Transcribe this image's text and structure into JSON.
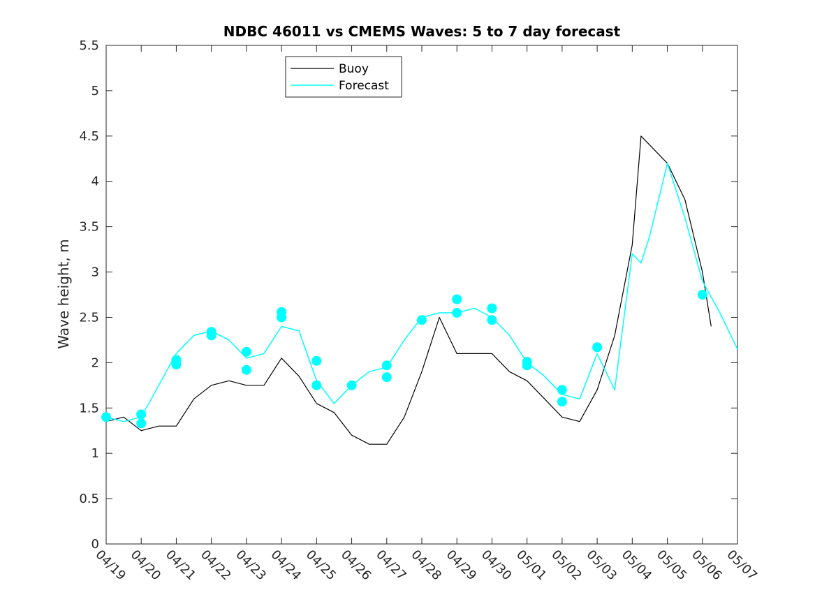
{
  "chart_data": {
    "type": "line",
    "title": "NDBC 46011 vs CMEMS Waves: 5 to 7 day forecast",
    "ylabel": "Wave height, m",
    "xlabel": "",
    "ylim": [
      0,
      5.5
    ],
    "yticks": [
      0,
      0.5,
      1,
      1.5,
      2,
      2.5,
      3,
      3.5,
      4,
      4.5,
      5,
      5.5
    ],
    "ytick_labels": [
      "0",
      "0.5",
      "1",
      "1.5",
      "2",
      "2.5",
      "3",
      "3.5",
      "4",
      "4.5",
      "5",
      "5.5"
    ],
    "xlim": [
      "04/19",
      "05/07"
    ],
    "xtick_labels": [
      "04/19",
      "04/20",
      "04/21",
      "04/22",
      "04/23",
      "04/24",
      "04/25",
      "04/26",
      "04/27",
      "04/28",
      "04/29",
      "04/30",
      "05/01",
      "05/02",
      "05/03",
      "05/04",
      "05/05",
      "05/06",
      "05/07"
    ],
    "grid": false,
    "legend": {
      "placement": "top-left",
      "entries": [
        {
          "label": "Buoy",
          "color": "#000000"
        },
        {
          "label": "Forecast",
          "color": "#00ffff"
        }
      ]
    },
    "colors": {
      "buoy": "#000000",
      "forecast": "#00ffff",
      "marker": "#00ffff"
    },
    "series": [
      {
        "name": "Buoy",
        "x": [
          "04/19 00:00",
          "04/19 12:00",
          "04/20 00:00",
          "04/20 12:00",
          "04/21 00:00",
          "04/21 12:00",
          "04/22 00:00",
          "04/22 12:00",
          "04/23 00:00",
          "04/23 12:00",
          "04/24 00:00",
          "04/24 12:00",
          "04/25 00:00",
          "04/25 12:00",
          "04/26 00:00",
          "04/26 12:00",
          "04/27 00:00",
          "04/27 12:00",
          "04/28 00:00",
          "04/28 12:00",
          "04/29 00:00",
          "04/29 12:00",
          "04/30 00:00",
          "04/30 12:00",
          "05/01 00:00",
          "05/01 12:00",
          "05/02 00:00",
          "05/02 12:00",
          "05/03 00:00",
          "05/03 12:00",
          "05/04 00:00",
          "05/04 06:00",
          "05/04 12:00",
          "05/05 00:00",
          "05/05 12:00",
          "05/06 00:00",
          "05/06 06:00"
        ],
        "y": [
          1.35,
          1.4,
          1.25,
          1.3,
          1.3,
          1.6,
          1.75,
          1.8,
          1.75,
          1.75,
          2.05,
          1.85,
          1.55,
          1.45,
          1.2,
          1.1,
          1.1,
          1.4,
          1.9,
          2.5,
          2.1,
          2.1,
          2.1,
          1.9,
          1.8,
          1.6,
          1.4,
          1.35,
          1.7,
          2.3,
          3.3,
          4.5,
          4.4,
          4.2,
          3.8,
          3.0,
          2.4
        ]
      },
      {
        "name": "Forecast",
        "x": [
          "04/19 00:00",
          "04/19 12:00",
          "04/20 00:00",
          "04/20 12:00",
          "04/21 00:00",
          "04/21 12:00",
          "04/22 00:00",
          "04/22 12:00",
          "04/23 00:00",
          "04/23 12:00",
          "04/24 00:00",
          "04/24 12:00",
          "04/25 00:00",
          "04/25 12:00",
          "04/26 00:00",
          "04/26 12:00",
          "04/27 00:00",
          "04/27 12:00",
          "04/28 00:00",
          "04/28 12:00",
          "04/29 00:00",
          "04/29 12:00",
          "04/30 00:00",
          "04/30 12:00",
          "05/01 00:00",
          "05/01 12:00",
          "05/02 00:00",
          "05/02 12:00",
          "05/03 00:00",
          "05/03 12:00",
          "05/04 00:00",
          "05/04 06:00",
          "05/04 12:00",
          "05/05 00:00",
          "05/05 12:00",
          "05/06 00:00",
          "05/06 12:00",
          "05/07 00:00"
        ],
        "y": [
          1.4,
          1.35,
          1.4,
          1.75,
          2.1,
          2.3,
          2.35,
          2.25,
          2.05,
          2.1,
          2.4,
          2.35,
          1.8,
          1.55,
          1.75,
          1.9,
          1.95,
          2.25,
          2.5,
          2.55,
          2.55,
          2.6,
          2.5,
          2.3,
          2.0,
          1.85,
          1.65,
          1.6,
          2.1,
          1.7,
          3.2,
          3.1,
          3.4,
          4.2,
          3.6,
          2.9,
          2.55,
          2.15
        ]
      }
    ],
    "markers": {
      "x": [
        "04/19 00:00",
        "04/20 00:00",
        "04/20 00:00",
        "04/21 00:00",
        "04/21 00:00",
        "04/22 00:00",
        "04/22 00:00",
        "04/23 00:00",
        "04/23 00:00",
        "04/24 00:00",
        "04/24 00:00",
        "04/25 00:00",
        "04/25 00:00",
        "04/26 00:00",
        "04/27 00:00",
        "04/27 00:00",
        "04/28 00:00",
        "04/29 00:00",
        "04/29 00:00",
        "04/30 00:00",
        "04/30 00:00",
        "05/01 00:00",
        "05/01 00:00",
        "05/02 00:00",
        "05/02 00:00",
        "05/03 00:00",
        "05/06 00:00"
      ],
      "y": [
        1.4,
        1.43,
        1.33,
        2.03,
        1.98,
        2.34,
        2.3,
        2.12,
        1.92,
        2.56,
        2.5,
        2.02,
        1.75,
        1.75,
        1.97,
        1.84,
        2.47,
        2.7,
        2.55,
        2.6,
        2.47,
        2.01,
        1.97,
        1.7,
        1.57,
        2.17,
        2.75
      ]
    }
  }
}
